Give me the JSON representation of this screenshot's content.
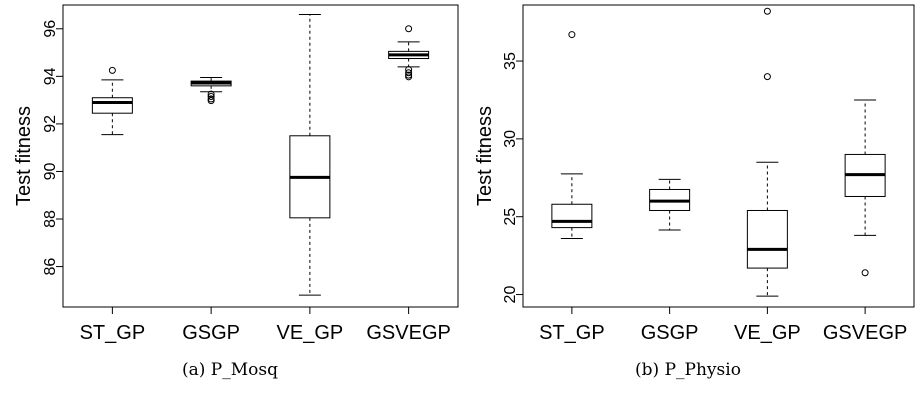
{
  "chart_data": [
    {
      "type": "box",
      "caption": "(a) P_Mosq",
      "ylabel": "Test fitness",
      "ylim": [
        84.3,
        97.0
      ],
      "yticks": [
        86,
        88,
        90,
        92,
        94,
        96
      ],
      "categories": [
        "ST_GP",
        "GSGP",
        "VE_GP",
        "GSVEGP"
      ],
      "boxes": [
        {
          "whisker_low": 91.55,
          "q1": 92.45,
          "median": 92.9,
          "q3": 93.1,
          "whisker_high": 93.85,
          "outliers": [
            94.25
          ]
        },
        {
          "whisker_low": 93.35,
          "q1": 93.6,
          "median": 93.72,
          "q3": 93.8,
          "whisker_high": 93.95,
          "outliers": [
            93.25,
            93.15,
            93.05,
            92.98
          ]
        },
        {
          "whisker_low": 84.8,
          "q1": 88.05,
          "median": 89.75,
          "q3": 91.5,
          "whisker_high": 96.6,
          "outliers": []
        },
        {
          "whisker_low": 94.4,
          "q1": 94.75,
          "median": 94.9,
          "q3": 95.05,
          "whisker_high": 95.45,
          "outliers": [
            96.0,
            94.28,
            94.15,
            94.05,
            93.98
          ]
        }
      ]
    },
    {
      "type": "box",
      "caption": "(b) P_Physio",
      "ylabel": "Test fitness",
      "ylim": [
        19.2,
        38.6
      ],
      "yticks": [
        20,
        25,
        30,
        35
      ],
      "categories": [
        "ST_GP",
        "GSGP",
        "VE_GP",
        "GSVEGP"
      ],
      "boxes": [
        {
          "whisker_low": 23.6,
          "q1": 24.3,
          "median": 24.7,
          "q3": 25.8,
          "whisker_high": 27.75,
          "outliers": [
            36.7
          ]
        },
        {
          "whisker_low": 24.15,
          "q1": 25.4,
          "median": 26.0,
          "q3": 26.75,
          "whisker_high": 27.4,
          "outliers": []
        },
        {
          "whisker_low": 19.9,
          "q1": 21.7,
          "median": 22.9,
          "q3": 25.4,
          "whisker_high": 28.5,
          "outliers": [
            34.0,
            38.2
          ]
        },
        {
          "whisker_low": 23.8,
          "q1": 26.3,
          "median": 27.7,
          "q3": 29.0,
          "whisker_high": 32.5,
          "outliers": [
            21.4
          ]
        }
      ]
    }
  ]
}
